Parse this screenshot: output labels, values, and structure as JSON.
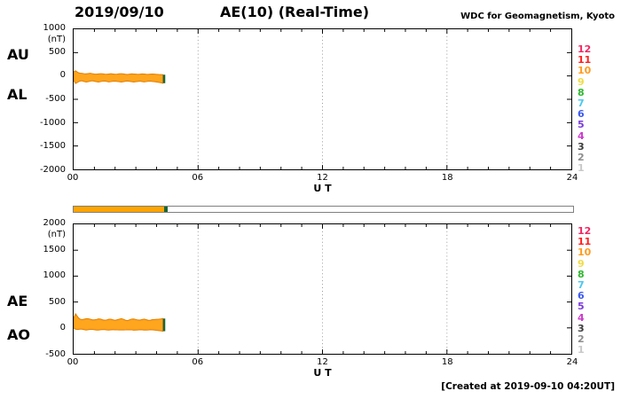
{
  "header": {
    "date": "2019/09/10",
    "title": "AE(10) (Real-Time)",
    "source": "WDC for Geomagnetism, Kyoto"
  },
  "footer": {
    "created": "[Created at 2019-09-10 04:20UT]"
  },
  "station_numbers": [
    {
      "label": "12",
      "color": "#f02864"
    },
    {
      "label": "11",
      "color": "#ff1e1e"
    },
    {
      "label": "10",
      "color": "#ff9b1e"
    },
    {
      "label": "9",
      "color": "#f0dc46"
    },
    {
      "label": "8",
      "color": "#2eb82e"
    },
    {
      "label": "7",
      "color": "#49c8f0"
    },
    {
      "label": "6",
      "color": "#3c5af0"
    },
    {
      "label": "5",
      "color": "#7a3cdc"
    },
    {
      "label": "4",
      "color": "#cd3ccd"
    },
    {
      "label": "3",
      "color": "#3c3c3c"
    },
    {
      "label": "2",
      "color": "#8c8c8c"
    },
    {
      "label": "1",
      "color": "#c8c8c8"
    }
  ],
  "availability_bar": {
    "xlim": [
      0,
      24
    ],
    "segments": [
      {
        "from": 0,
        "to": 4.33,
        "color": "#ffa500"
      },
      {
        "from": 4.33,
        "to": 4.5,
        "color": "#1a6633"
      }
    ]
  },
  "chart_data": [
    {
      "type": "area",
      "panel": "AU/AL",
      "xlabel": "U T",
      "ylabel": "(nT)",
      "xlim": [
        0,
        24
      ],
      "xticks": [
        0,
        6,
        12,
        18,
        24
      ],
      "xtick_labels": [
        "00",
        "06",
        "12",
        "18",
        "24"
      ],
      "ylim": [
        -2000,
        1000
      ],
      "yticks": [
        1000,
        500,
        0,
        -500,
        -1000,
        -1500,
        -2000
      ],
      "left_labels": [
        "AU",
        "AL"
      ],
      "band_color": "#ffa51e",
      "band_stroke": "#e07d00",
      "end_marker_color": "#1a6633",
      "x": [
        0,
        0.1,
        0.2,
        0.3,
        0.4,
        0.5,
        0.6,
        0.7,
        0.8,
        0.9,
        1,
        1.1,
        1.2,
        1.3,
        1.4,
        1.5,
        1.6,
        1.7,
        1.8,
        1.9,
        2,
        2.1,
        2.2,
        2.3,
        2.4,
        2.5,
        2.6,
        2.7,
        2.8,
        2.9,
        3,
        3.1,
        3.2,
        3.3,
        3.4,
        3.5,
        3.6,
        3.7,
        3.8,
        3.9,
        4,
        4.1,
        4.2,
        4.3
      ],
      "series": [
        {
          "name": "AU",
          "values": [
            90,
            110,
            75,
            60,
            55,
            50,
            46,
            52,
            57,
            50,
            42,
            38,
            44,
            49,
            45,
            40,
            36,
            42,
            47,
            42,
            37,
            40,
            45,
            49,
            43,
            36,
            32,
            40,
            46,
            42,
            38,
            35,
            39,
            44,
            42,
            37,
            34,
            38,
            42,
            39,
            35,
            31,
            28,
            26
          ]
        },
        {
          "name": "AL",
          "values": [
            -100,
            -160,
            -135,
            -110,
            -105,
            -118,
            -130,
            -124,
            -112,
            -105,
            -114,
            -124,
            -130,
            -121,
            -111,
            -108,
            -117,
            -126,
            -121,
            -113,
            -110,
            -117,
            -124,
            -130,
            -124,
            -113,
            -108,
            -116,
            -124,
            -130,
            -124,
            -117,
            -111,
            -119,
            -127,
            -122,
            -113,
            -110,
            -117,
            -124,
            -130,
            -137,
            -144,
            -155
          ]
        }
      ]
    },
    {
      "type": "area",
      "panel": "AE/AO",
      "xlabel": "U T",
      "ylabel": "(nT)",
      "xlim": [
        0,
        24
      ],
      "xticks": [
        0,
        6,
        12,
        18,
        24
      ],
      "xtick_labels": [
        "00",
        "06",
        "12",
        "18",
        "24"
      ],
      "ylim": [
        -500,
        2000
      ],
      "yticks": [
        2000,
        1500,
        1000,
        500,
        0,
        -500
      ],
      "left_labels": [
        "AE",
        "AO"
      ],
      "band_color": "#ffa51e",
      "band_stroke": "#e07d00",
      "end_marker_color": "#1a6633",
      "x": [
        0,
        0.1,
        0.2,
        0.3,
        0.4,
        0.5,
        0.6,
        0.7,
        0.8,
        0.9,
        1,
        1.1,
        1.2,
        1.3,
        1.4,
        1.5,
        1.6,
        1.7,
        1.8,
        1.9,
        2,
        2.1,
        2.2,
        2.3,
        2.4,
        2.5,
        2.6,
        2.7,
        2.8,
        2.9,
        3,
        3.1,
        3.2,
        3.3,
        3.4,
        3.5,
        3.6,
        3.7,
        3.8,
        3.9,
        4,
        4.1,
        4.2,
        4.3
      ],
      "series": [
        {
          "name": "AE",
          "values": [
            190,
            270,
            210,
            170,
            160,
            168,
            176,
            176,
            169,
            155,
            156,
            162,
            174,
            170,
            156,
            148,
            153,
            168,
            168,
            155,
            147,
            157,
            169,
            179,
            167,
            149,
            140,
            156,
            170,
            172,
            162,
            152,
            150,
            163,
            169,
            159,
            147,
            148,
            159,
            163,
            165,
            168,
            172,
            181
          ]
        },
        {
          "name": "AO",
          "values": [
            -5,
            -25,
            -30,
            -25,
            -25,
            -34,
            -42,
            -36,
            -28,
            -28,
            -36,
            -43,
            -43,
            -36,
            -33,
            -34,
            -41,
            -42,
            -37,
            -36,
            -37,
            -39,
            -40,
            -41,
            -41,
            -39,
            -38,
            -38,
            -39,
            -44,
            -43,
            -41,
            -36,
            -38,
            -43,
            -43,
            -40,
            -36,
            -38,
            -43,
            -48,
            -53,
            -58,
            -65
          ]
        }
      ]
    }
  ]
}
